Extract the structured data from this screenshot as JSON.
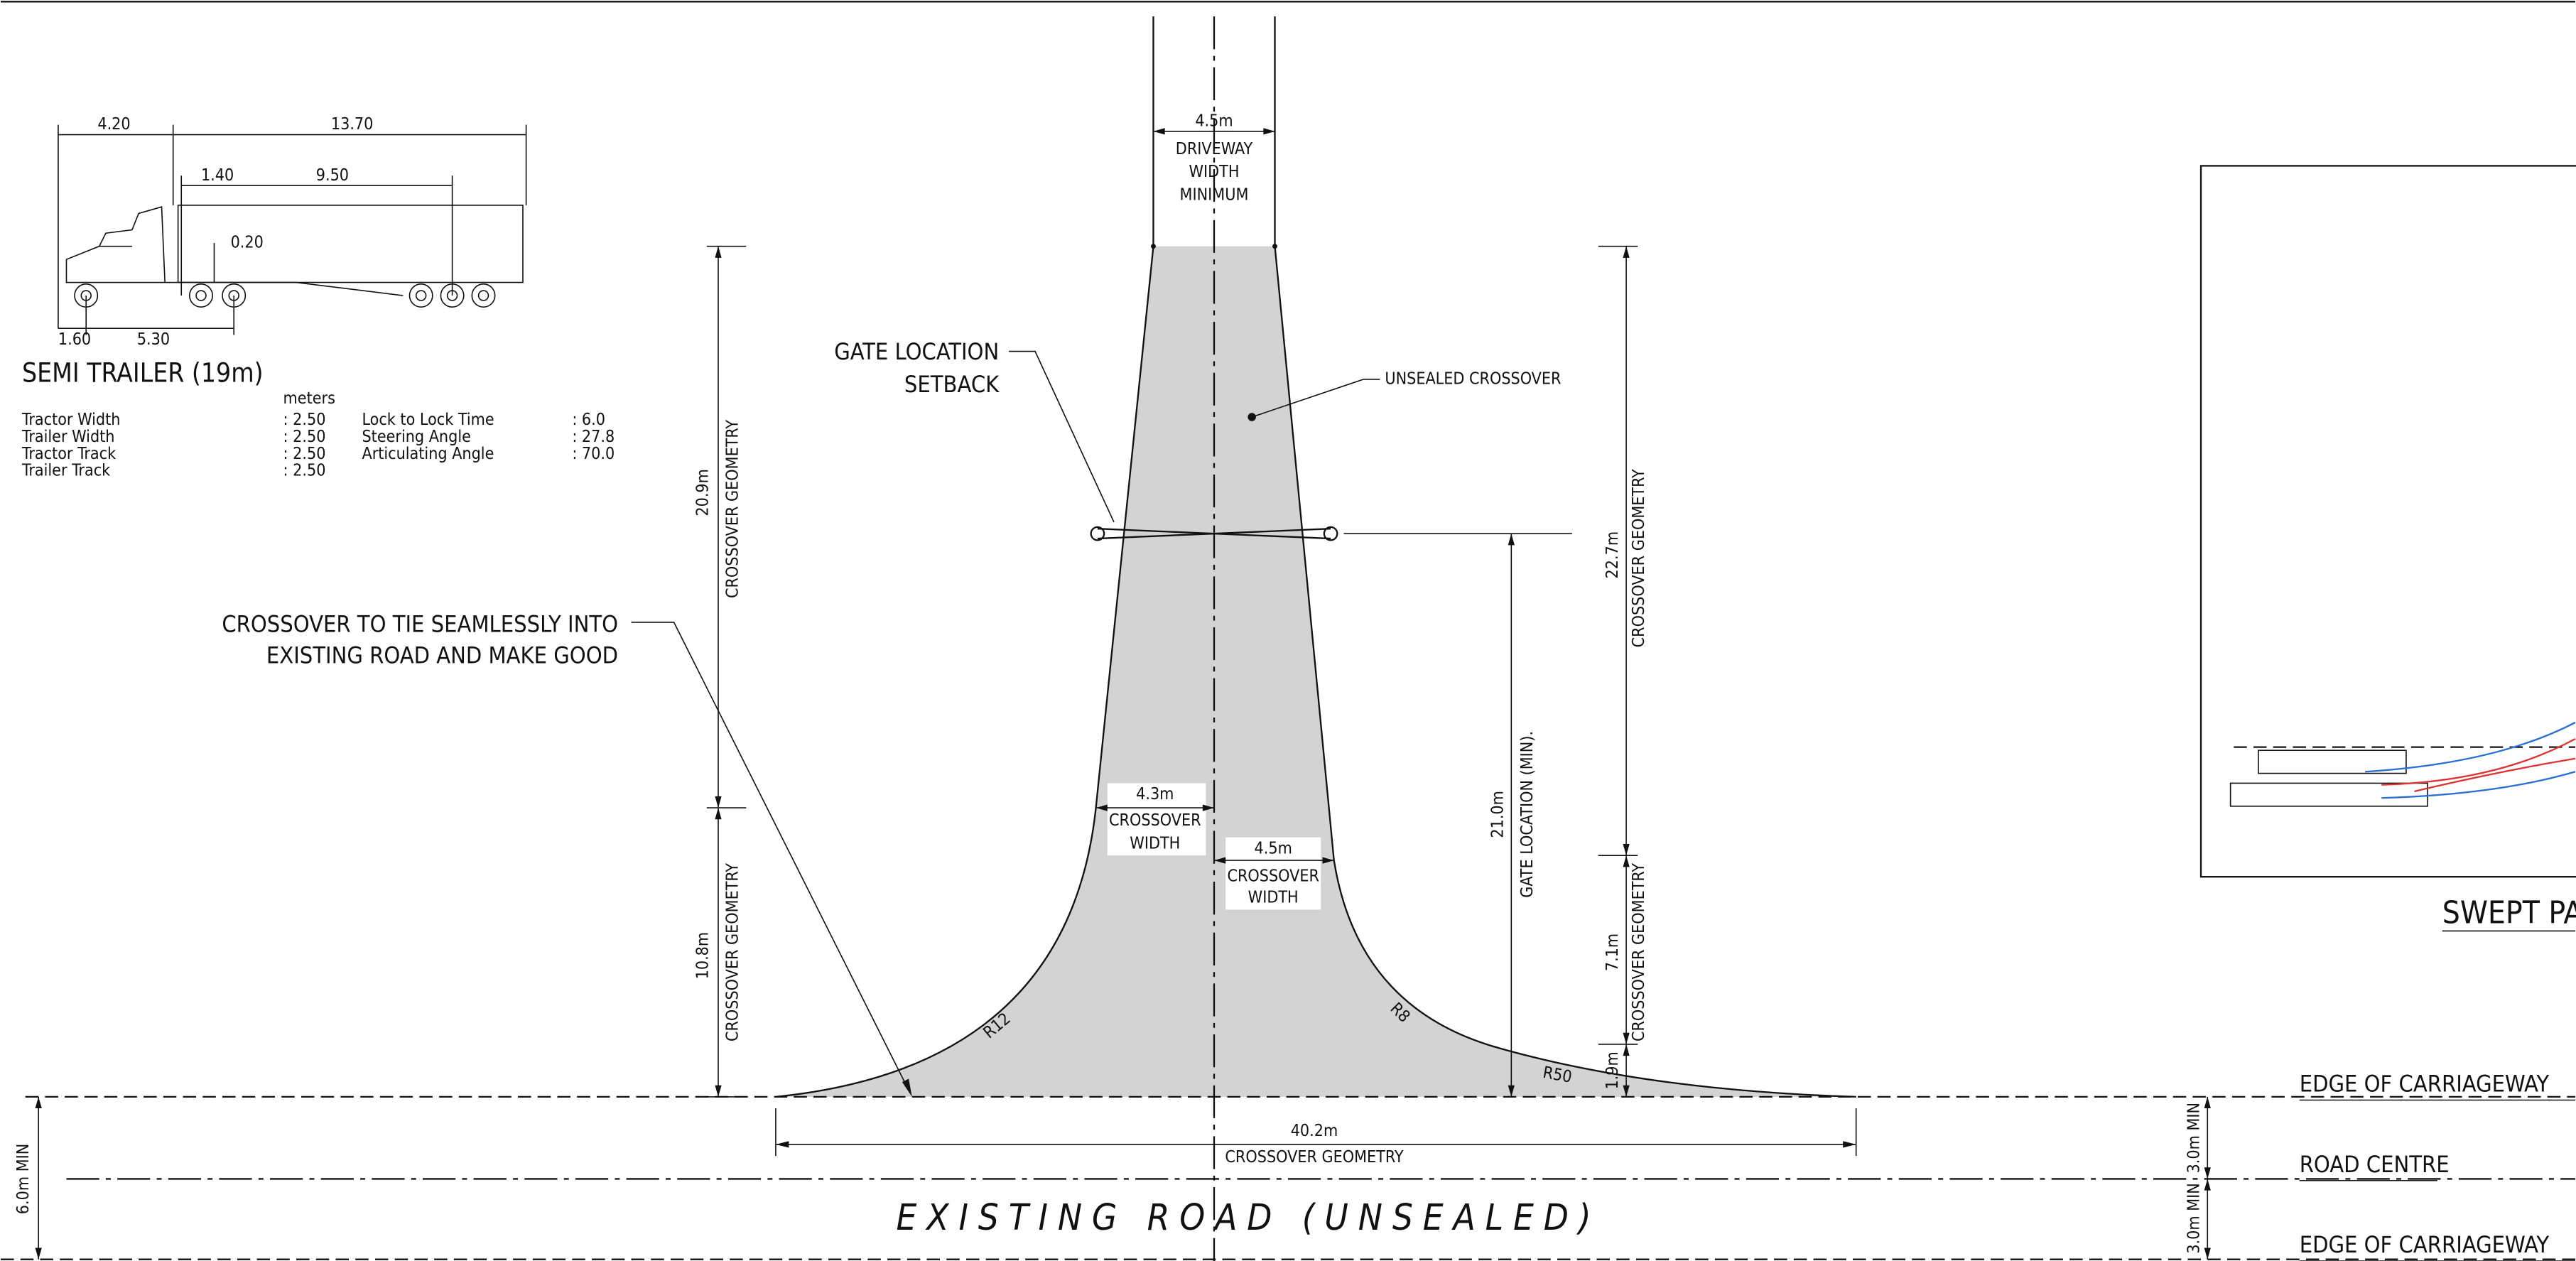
{
  "vehicle": {
    "dims": [
      "4.20",
      "13.70",
      "1.40",
      "9.50",
      "0.20",
      "1.60",
      "5.30"
    ],
    "title": "SEMI TRAILER (19m)",
    "unit": "meters",
    "specs_left": [
      {
        "label": "Tractor Width",
        "value": ": 2.50"
      },
      {
        "label": "Trailer Width",
        "value": ": 2.50"
      },
      {
        "label": "Tractor Track",
        "value": ": 2.50"
      },
      {
        "label": "Trailer Track",
        "value": ": 2.50"
      }
    ],
    "specs_right": [
      {
        "label": "Lock to Lock Time",
        "value": ": 6.0"
      },
      {
        "label": "Steering Angle",
        "value": ": 27.8"
      },
      {
        "label": "Articulating Angle",
        "value": ": 70.0"
      }
    ]
  },
  "driveway": {
    "width": "4.5m",
    "label": [
      "DRIVEWAY",
      "WIDTH",
      "MINIMUM"
    ]
  },
  "gate": {
    "callout": [
      "GATE LOCATION",
      "SETBACK"
    ],
    "dimension": "21.0m",
    "dimension_label": "GATE LOCATION (MIN)."
  },
  "crossover": {
    "unsealed": "UNSEALED CROSSOVER",
    "tie_note": [
      "CROSSOVER TO TIE SEAMLESSLY INTO",
      "EXISTING ROAD AND MAKE GOOD"
    ],
    "left_upper": {
      "value": "20.9m",
      "label": "CROSSOVER GEOMETRY"
    },
    "left_lower": {
      "value": "10.8m",
      "label": "CROSSOVER GEOMETRY"
    },
    "right_upper": {
      "value": "22.7m",
      "label": "CROSSOVER GEOMETRY"
    },
    "right_lower": {
      "value": "7.1m",
      "label": "CROSSOVER GEOMETRY"
    },
    "right_bottom": "1.9m",
    "left_width": {
      "value": "4.3m",
      "label": [
        "CROSSOVER",
        "WIDTH"
      ]
    },
    "right_width": {
      "value": "4.5m",
      "label": [
        "CROSSOVER",
        "WIDTH"
      ]
    },
    "radii": [
      "R12",
      "R8",
      "R50"
    ],
    "total": {
      "value": "40.2m",
      "label": "CROSSOVER GEOMETRY"
    }
  },
  "road": {
    "name": "EXISTING ROAD (UNSEALED)",
    "total_width": "6.0m MIN",
    "half_widths": [
      "3.0m MIN",
      "3.0m MIN"
    ],
    "lines": [
      "EDGE OF CARRIAGEWAY",
      "ROAD CENTRE",
      "EDGE OF CARRIAGEWAY"
    ]
  },
  "inset": {
    "title": "SWEPT PA"
  }
}
